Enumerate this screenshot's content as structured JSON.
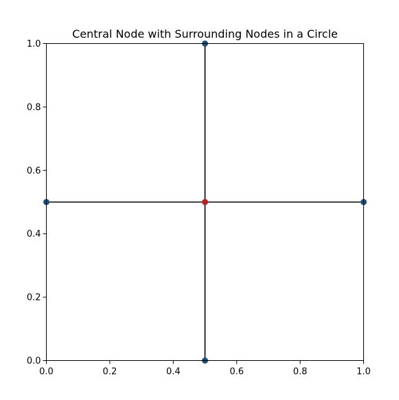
{
  "chart_data": {
    "type": "scatter",
    "title": "Central Node with Surrounding Nodes in a Circle",
    "xlabel": "",
    "ylabel": "",
    "xlim": [
      0,
      1
    ],
    "ylim": [
      0,
      1
    ],
    "grid": false,
    "x_ticks": [
      "0.0",
      "0.2",
      "0.4",
      "0.6",
      "0.8",
      "1.0"
    ],
    "y_ticks": [
      "0.0",
      "0.2",
      "0.4",
      "0.6",
      "0.8",
      "1.0"
    ],
    "x_tick_values": [
      0,
      0.2,
      0.4,
      0.6,
      0.8,
      1.0
    ],
    "y_tick_values": [
      0,
      0.2,
      0.4,
      0.6,
      0.8,
      1.0
    ],
    "central_node": {
      "x": 0.5,
      "y": 0.5,
      "color": "#b22222"
    },
    "surrounding_nodes": [
      {
        "x": 1.0,
        "y": 0.5
      },
      {
        "x": 0.5,
        "y": 1.0
      },
      {
        "x": 0.0,
        "y": 0.5
      },
      {
        "x": 0.5,
        "y": 0.0
      }
    ],
    "node_color": "#1f4e79",
    "edge_color": "#000000"
  }
}
